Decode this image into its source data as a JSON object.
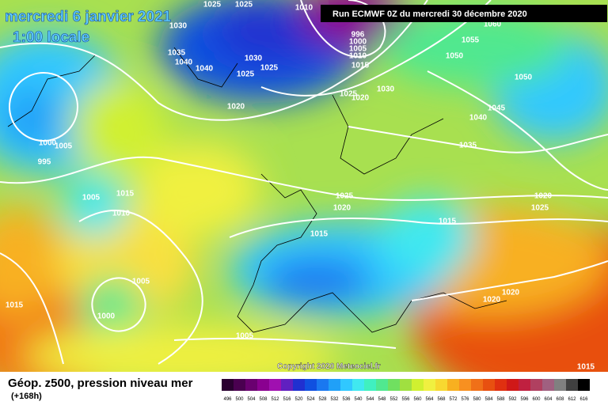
{
  "header": {
    "date": "mercredi 6 janvier 2021",
    "time": "1:00 locale",
    "run": "Run ECMWF 0Z du mercredi 30 décembre 2020"
  },
  "copyright": "Copyright 2020 Meteociel.fr",
  "footer": {
    "title": "Géop. z500, pression niveau mer",
    "lead": "(+168h)"
  },
  "isobar_labels": [
    "1025",
    "1025",
    "1010",
    "1030",
    "1035",
    "1040",
    "1040",
    "1030",
    "1025",
    "1025",
    "1020",
    "996",
    "1000",
    "1005",
    "1010",
    "1015",
    "1060",
    "1055",
    "1050",
    "1050",
    "1030",
    "1025",
    "1020",
    "1045",
    "1040",
    "1035",
    "1000",
    "1005",
    "995",
    "1005",
    "1015",
    "1010",
    "1025",
    "1020",
    "1015",
    "1015",
    "1020",
    "1025",
    "1005",
    "1000",
    "1015",
    "1005",
    "1020",
    "1020",
    "1015"
  ],
  "scale": {
    "ticks": [
      496,
      500,
      504,
      508,
      512,
      516,
      520,
      524,
      528,
      532,
      536,
      540,
      544,
      548,
      552,
      556,
      560,
      564,
      568,
      572,
      576,
      580,
      584,
      588,
      592,
      596,
      600,
      604,
      608,
      612,
      616
    ],
    "colors": [
      "#2a0030",
      "#4a0050",
      "#6a0070",
      "#8a0090",
      "#a010b0",
      "#6020c0",
      "#2030d0",
      "#1050e0",
      "#1a78f0",
      "#20a0f8",
      "#30c8ff",
      "#40e8f0",
      "#40f0c0",
      "#50e890",
      "#70e060",
      "#a0e040",
      "#d0f030",
      "#f0f040",
      "#f8d830",
      "#f8b020",
      "#f89020",
      "#f07018",
      "#e85010",
      "#e03010",
      "#d01818",
      "#c02040",
      "#b04060",
      "#a06080",
      "#808080",
      "#404040",
      "#000000"
    ]
  }
}
